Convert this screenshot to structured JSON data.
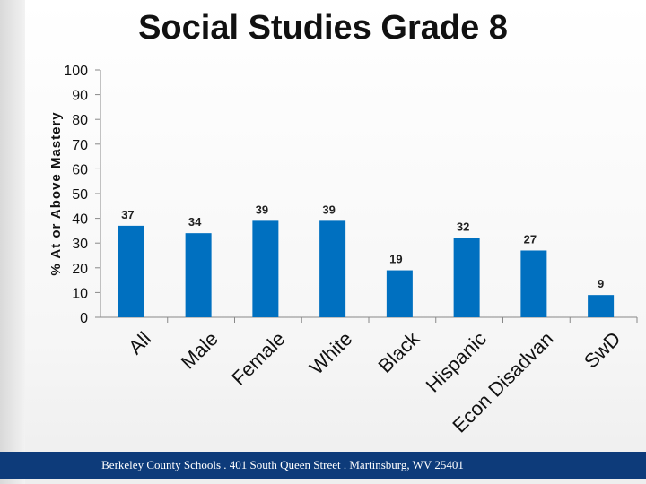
{
  "title": "Social Studies Grade 8",
  "footer": {
    "text": "Berkeley County Schools . 401 South Queen Street . Martinsburg, WV  25401"
  },
  "colors": {
    "bar": "#0070c0",
    "footer": "#0d3b7a"
  },
  "chart_data": {
    "type": "bar",
    "title": "Social Studies Grade 8",
    "ylabel": "% At or Above Mastery",
    "xlabel": "",
    "ylim": [
      0,
      100
    ],
    "yticks": [
      0,
      10,
      20,
      30,
      40,
      50,
      60,
      70,
      80,
      90,
      100
    ],
    "grid": false,
    "categories": [
      "All",
      "Male",
      "Female",
      "White",
      "Black",
      "Hispanic",
      "Econ Disadvan",
      "SwD"
    ],
    "values": [
      37,
      34,
      39,
      39,
      19,
      32,
      27,
      9
    ],
    "data_labels": [
      "37",
      "34",
      "39",
      "39",
      "19",
      "32",
      "27",
      "9"
    ]
  }
}
